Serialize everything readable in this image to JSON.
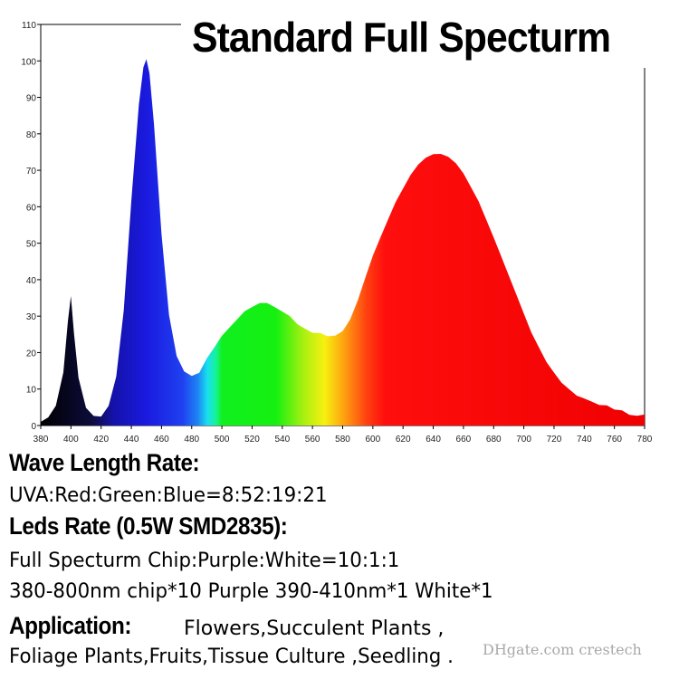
{
  "chart_data": {
    "type": "area",
    "title": "Standard Full Specturm",
    "xlim": [
      380,
      780
    ],
    "ylim": [
      0,
      110
    ],
    "x_ticks": [
      380,
      400,
      420,
      440,
      460,
      480,
      500,
      520,
      540,
      560,
      580,
      600,
      620,
      640,
      660,
      680,
      700,
      720,
      740,
      760,
      780
    ],
    "y_ticks": [
      0,
      10,
      20,
      30,
      40,
      50,
      60,
      70,
      80,
      90,
      100,
      110
    ],
    "grid": false,
    "x": [
      380,
      385,
      390,
      395,
      398,
      400,
      402,
      405,
      410,
      415,
      420,
      425,
      430,
      435,
      440,
      445,
      448,
      450,
      452,
      455,
      460,
      465,
      470,
      475,
      480,
      485,
      490,
      495,
      500,
      505,
      510,
      515,
      520,
      525,
      530,
      535,
      540,
      545,
      550,
      555,
      560,
      565,
      570,
      575,
      580,
      585,
      590,
      595,
      600,
      605,
      610,
      615,
      620,
      625,
      630,
      635,
      640,
      645,
      650,
      655,
      660,
      665,
      670,
      675,
      680,
      685,
      690,
      695,
      700,
      705,
      710,
      715,
      720,
      725,
      730,
      735,
      740,
      745,
      750,
      755,
      760,
      765,
      770,
      775,
      780
    ],
    "values": [
      1,
      2,
      5,
      14,
      28,
      35,
      25,
      13,
      5,
      3,
      3,
      6,
      14,
      32,
      62,
      88,
      98,
      100,
      96,
      82,
      52,
      30,
      19,
      15,
      14,
      15,
      19,
      22,
      25,
      27,
      29,
      31,
      32,
      33,
      33,
      32,
      31,
      30,
      28,
      27,
      26,
      26,
      25,
      25,
      26,
      29,
      34,
      40,
      46,
      51,
      56,
      61,
      65,
      69,
      72,
      74,
      75,
      75,
      74,
      72,
      69,
      65,
      61,
      56,
      51,
      46,
      41,
      36,
      31,
      26,
      22,
      18,
      15,
      12,
      10,
      8,
      7,
      6,
      5,
      5,
      4,
      4,
      3,
      3,
      3
    ]
  },
  "sections": {
    "wave_heading": "Wave Length Rate:",
    "wave_line": "UVA:Red:Green:Blue=8:52:19:21",
    "leds_heading": "Leds Rate (0.5W SMD2835):",
    "leds_line1": "Full Specturm Chip:Purple:White=10:1:1",
    "leds_line2": "380-800nm chip*10    Purple 390-410nm*1     White*1",
    "app_heading": "Application:",
    "app_line1": "Flowers,Succulent Plants ,",
    "app_line2": "Foliage Plants,Fruits,Tissue Culture ,Seedling ."
  },
  "watermark": "DHgate.com   crestech"
}
